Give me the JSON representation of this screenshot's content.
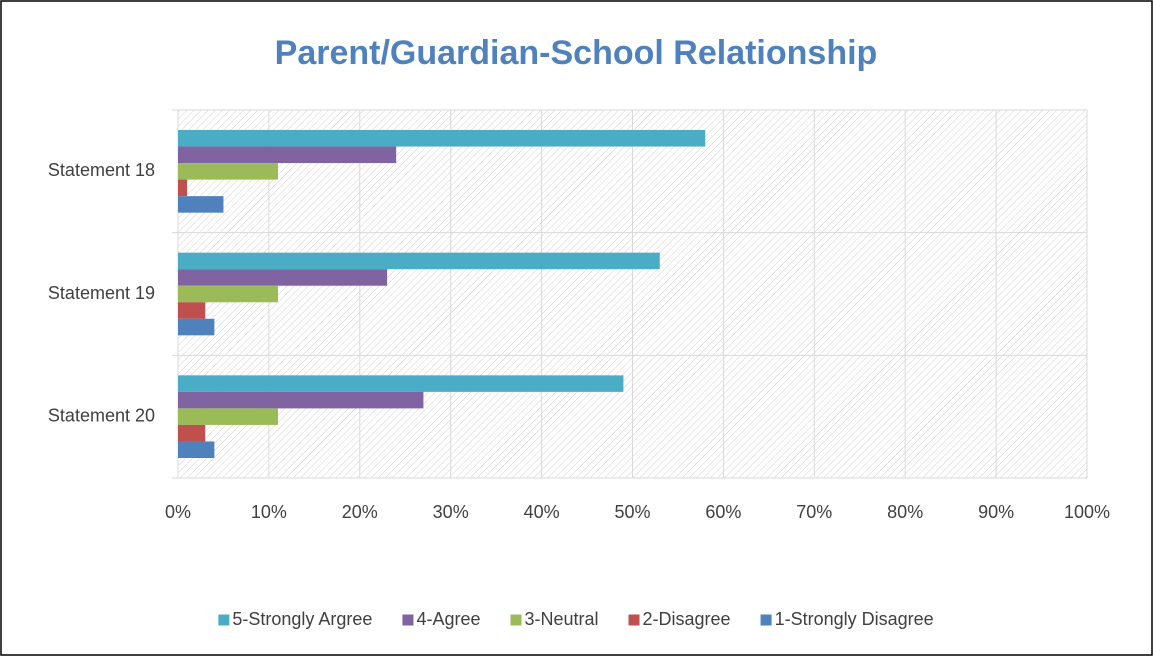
{
  "chart_data": {
    "type": "hbar",
    "title": "Parent/Guardian-School Relationship",
    "categories": [
      "Statement 18",
      "Statement 19",
      "Statement 20"
    ],
    "series": [
      {
        "name": "5-Strongly Argree",
        "color": "#4bacc6",
        "values": [
          58,
          53,
          49
        ]
      },
      {
        "name": "4-Agree",
        "color": "#8064a2",
        "values": [
          24,
          23,
          27
        ]
      },
      {
        "name": "3-Neutral",
        "color": "#9bbb59",
        "values": [
          11,
          11,
          11
        ]
      },
      {
        "name": "2-Disagree",
        "color": "#c0504d",
        "values": [
          1,
          3,
          3
        ]
      },
      {
        "name": "1-Strongly Disagree",
        "color": "#4f81bd",
        "values": [
          5,
          4,
          4
        ]
      }
    ],
    "xlim": [
      0,
      100
    ],
    "xticks": [
      {
        "value": 0,
        "label": "0%"
      },
      {
        "value": 10,
        "label": "10%"
      },
      {
        "value": 20,
        "label": "20%"
      },
      {
        "value": 30,
        "label": "30%"
      },
      {
        "value": 40,
        "label": "40%"
      },
      {
        "value": 50,
        "label": "50%"
      },
      {
        "value": 60,
        "label": "60%"
      },
      {
        "value": 70,
        "label": "70%"
      },
      {
        "value": 80,
        "label": "80%"
      },
      {
        "value": 90,
        "label": "90%"
      },
      {
        "value": 100,
        "label": "100%"
      }
    ],
    "grid": true,
    "legend": "bottom"
  }
}
